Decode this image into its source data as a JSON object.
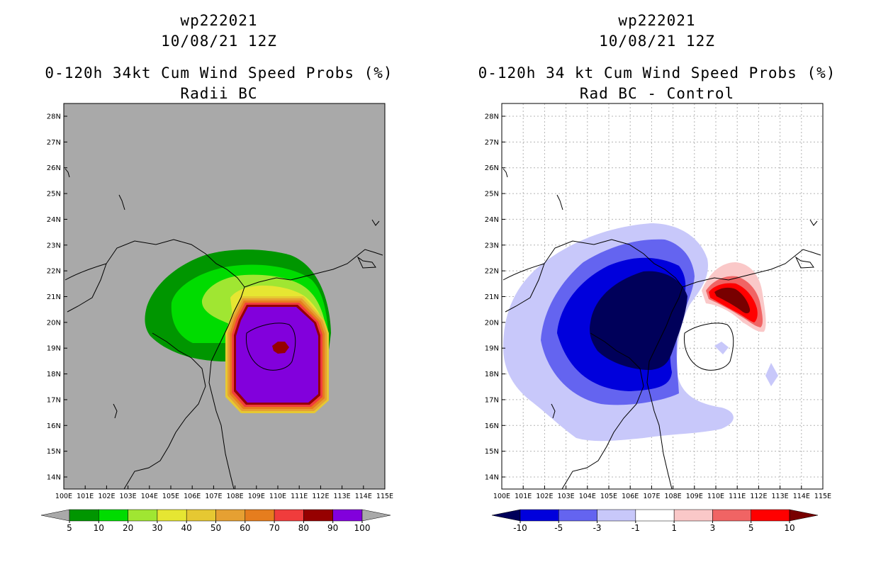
{
  "panels": [
    {
      "storm_id": "wp222021",
      "datetime": "10/08/21 12Z",
      "title": "0-120h 34kt Cum Wind Speed Probs (%)",
      "subtitle": "Radii BC",
      "background_color": "#a9a9a9",
      "grid_lines": false,
      "lat_labels": [
        "14N",
        "15N",
        "16N",
        "17N",
        "18N",
        "19N",
        "20N",
        "21N",
        "22N",
        "23N",
        "24N",
        "25N",
        "26N",
        "27N",
        "28N"
      ],
      "lon_labels": [
        "100E",
        "101E",
        "102E",
        "103E",
        "104E",
        "105E",
        "106E",
        "107E",
        "108E",
        "109E",
        "110E",
        "111E",
        "112E",
        "113E",
        "114E",
        "115E"
      ],
      "colorbar": {
        "labels": [
          "5",
          "10",
          "20",
          "30",
          "40",
          "50",
          "60",
          "70",
          "80",
          "90",
          "100"
        ],
        "colors": [
          "#009600",
          "#00dc00",
          "#a0e632",
          "#e6e632",
          "#e6c832",
          "#e6a032",
          "#e67d1e",
          "#f03c3c",
          "#960000",
          "#8200dc"
        ],
        "under_color": "#a9a9a9",
        "over_color": "#a9a9a9"
      }
    },
    {
      "storm_id": "wp222021",
      "datetime": "10/08/21 12Z",
      "title": "0-120h 34 kt Cum Wind Speed Probs (%)",
      "subtitle": "Rad BC - Control",
      "background_color": "#ffffff",
      "grid_lines": true,
      "lat_labels": [
        "14N",
        "15N",
        "16N",
        "17N",
        "18N",
        "19N",
        "20N",
        "21N",
        "22N",
        "23N",
        "24N",
        "25N",
        "26N",
        "27N",
        "28N"
      ],
      "lon_labels": [
        "100E",
        "101E",
        "102E",
        "103E",
        "104E",
        "105E",
        "106E",
        "107E",
        "108E",
        "109E",
        "110E",
        "111E",
        "112E",
        "113E",
        "114E",
        "115E"
      ],
      "colorbar": {
        "labels": [
          "-10",
          "-5",
          "-3",
          "-1",
          "1",
          "3",
          "5",
          "10"
        ],
        "colors": [
          "#0000dc",
          "#6464f0",
          "#c8c8fa",
          "#ffffff",
          "#fac8c8",
          "#f06464",
          "#ff0000"
        ],
        "under_color": "#00005a",
        "over_color": "#780000"
      }
    }
  ]
}
